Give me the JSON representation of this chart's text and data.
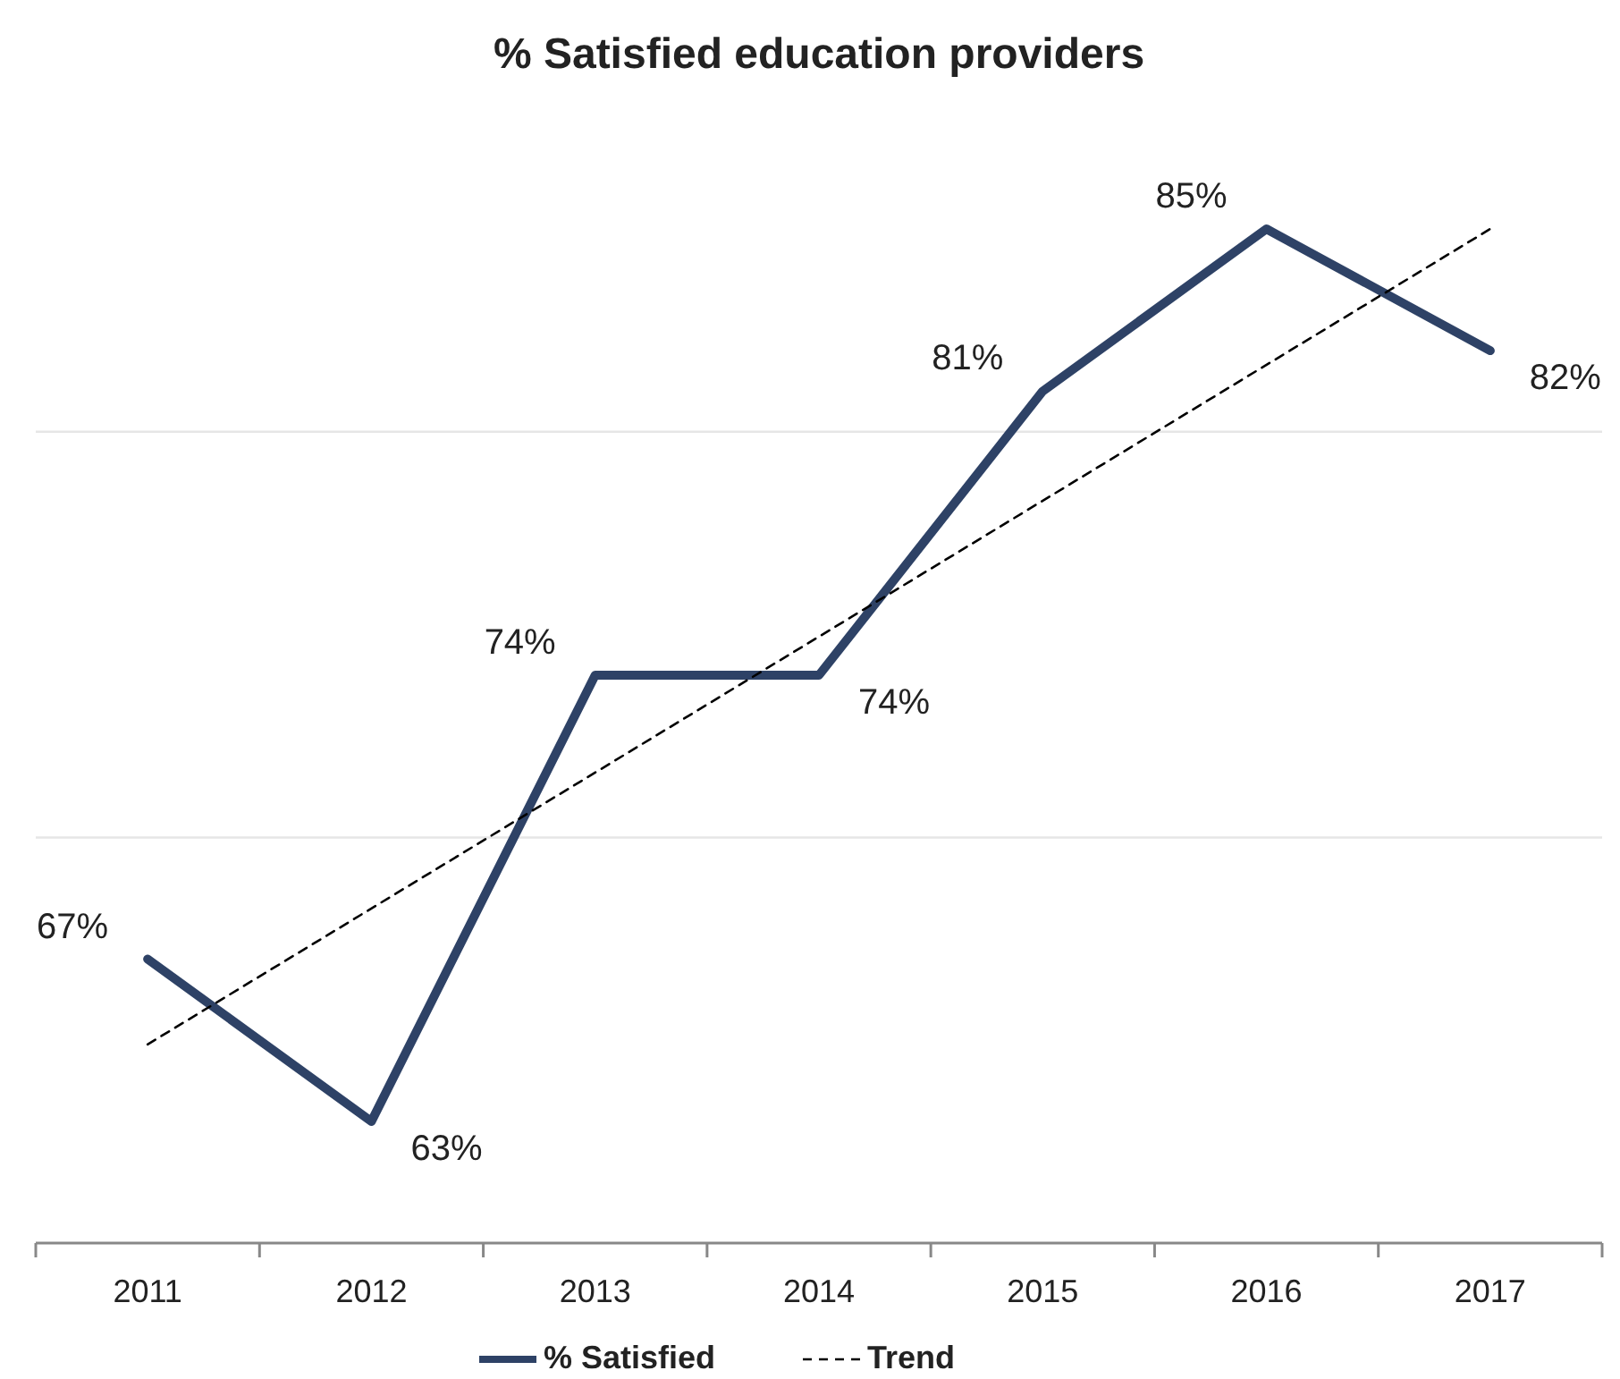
{
  "chart_data": {
    "type": "line",
    "title": "% Satisfied education providers",
    "categories": [
      "2011",
      "2012",
      "2013",
      "2014",
      "2015",
      "2016",
      "2017"
    ],
    "series": [
      {
        "name": "% Satisfied",
        "color": "#2e4266",
        "values": [
          67,
          63,
          74,
          74,
          81,
          85,
          82
        ],
        "value_labels": [
          "67%",
          "63%",
          "74%",
          "74%",
          "81%",
          "85%",
          "82%"
        ]
      },
      {
        "name": "Trend",
        "type": "line",
        "color": "#000000",
        "line_style": "dashed",
        "values": [
          64.9,
          null,
          null,
          null,
          null,
          null,
          85
        ]
      }
    ],
    "ref_lines": [
      {
        "axis": "y",
        "value": 70,
        "color": "#e6e6e6"
      },
      {
        "axis": "y",
        "value": 80,
        "color": "#e6e6e6"
      }
    ],
    "tick_labels": "x",
    "legend": "bottom",
    "marker": "none"
  }
}
